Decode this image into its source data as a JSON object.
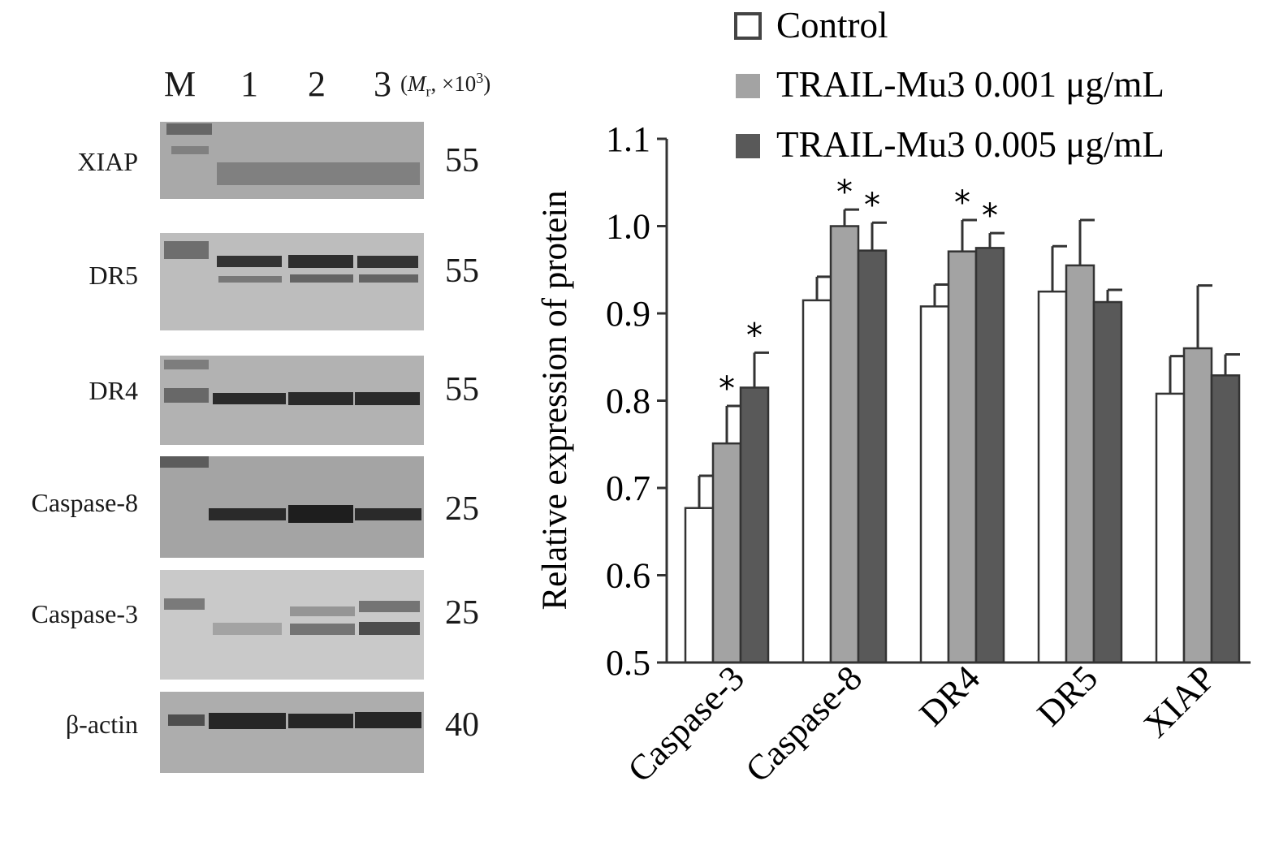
{
  "blot": {
    "lanes": [
      "M",
      "1",
      "2",
      "3"
    ],
    "mr_note": {
      "prefix": "(",
      "var": "M",
      "sub": "r",
      "mid": ", ×10",
      "sup": "3",
      "suffix": ")"
    },
    "panels": [
      {
        "protein": "XIAP",
        "mw": "55"
      },
      {
        "protein": "DR5",
        "mw": "55"
      },
      {
        "protein": "DR4",
        "mw": "55"
      },
      {
        "protein": "Caspase-8",
        "mw": "25"
      },
      {
        "protein": "Caspase-3",
        "mw": "25"
      },
      {
        "protein": "β-actin",
        "mw": "40"
      }
    ]
  },
  "chart_data": {
    "type": "bar",
    "categories": [
      "Caspase-3",
      "Caspase-8",
      "DR4",
      "DR5",
      "XIAP"
    ],
    "series": [
      {
        "name": "Control",
        "color": "#ffffff",
        "values": [
          0.677,
          0.915,
          0.908,
          0.925,
          0.808
        ],
        "errors": [
          0.037,
          0.027,
          0.025,
          0.052,
          0.043
        ],
        "significant": [
          false,
          false,
          false,
          false,
          false
        ]
      },
      {
        "name": "TRAIL-Mu3 0.001 μg/mL",
        "color": "#a3a3a3",
        "values": [
          0.751,
          1.0,
          0.971,
          0.955,
          0.86
        ],
        "errors": [
          0.043,
          0.019,
          0.036,
          0.052,
          0.072
        ],
        "significant": [
          true,
          true,
          true,
          false,
          false
        ]
      },
      {
        "name": "TRAIL-Mu3 0.005 μg/mL",
        "color": "#595959",
        "values": [
          0.815,
          0.972,
          0.975,
          0.913,
          0.829
        ],
        "errors": [
          0.04,
          0.032,
          0.017,
          0.014,
          0.024
        ],
        "significant": [
          true,
          true,
          true,
          false,
          false
        ]
      }
    ],
    "significance_marker": "*",
    "ylabel": "Relative expression of protein",
    "ylim": [
      0.5,
      1.1
    ],
    "yticks": [
      "0.5",
      "0.6",
      "0.7",
      "0.8",
      "0.9",
      "1.0",
      "1.1"
    ],
    "legend_position": "top",
    "grid": false
  }
}
